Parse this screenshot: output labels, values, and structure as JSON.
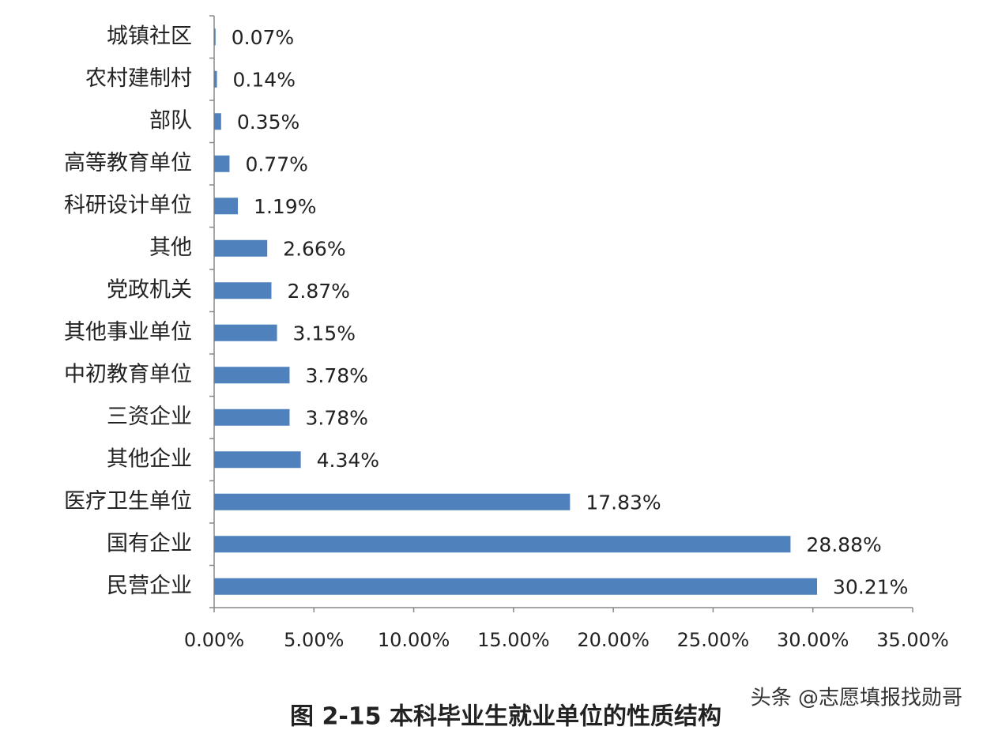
{
  "chart_data": {
    "type": "hbar",
    "title": "图 2-15 本科毕业生就业单位的性质结构",
    "watermark": "头条 @志愿填报找勋哥",
    "categories": [
      "城镇社区",
      "农村建制村",
      "部队",
      "高等教育单位",
      "科研设计单位",
      "其他",
      "党政机关",
      "其他事业单位",
      "中初教育单位",
      "三资企业",
      "其他企业",
      "医疗卫生单位",
      "国有企业",
      "民营企业"
    ],
    "values": [
      0.07,
      0.14,
      0.35,
      0.77,
      1.19,
      2.66,
      2.87,
      3.15,
      3.78,
      3.78,
      4.34,
      17.83,
      28.88,
      30.21
    ],
    "value_labels": [
      "0.07%",
      "0.14%",
      "0.35%",
      "0.77%",
      "1.19%",
      "2.66%",
      "2.87%",
      "3.15%",
      "3.78%",
      "3.78%",
      "4.34%",
      "17.83%",
      "28.88%",
      "30.21%"
    ],
    "color": "#4f81bd",
    "xlim": [
      0,
      35
    ],
    "xticks": [
      {
        "value": 0,
        "label": "0.00%"
      },
      {
        "value": 5,
        "label": "5.00%"
      },
      {
        "value": 10,
        "label": "10.00%"
      },
      {
        "value": 15,
        "label": "15.00%"
      },
      {
        "value": 20,
        "label": "20.00%"
      },
      {
        "value": 25,
        "label": "25.00%"
      },
      {
        "value": 30,
        "label": "30.00%"
      },
      {
        "value": 35,
        "label": "35.00%"
      }
    ],
    "grid": false
  }
}
